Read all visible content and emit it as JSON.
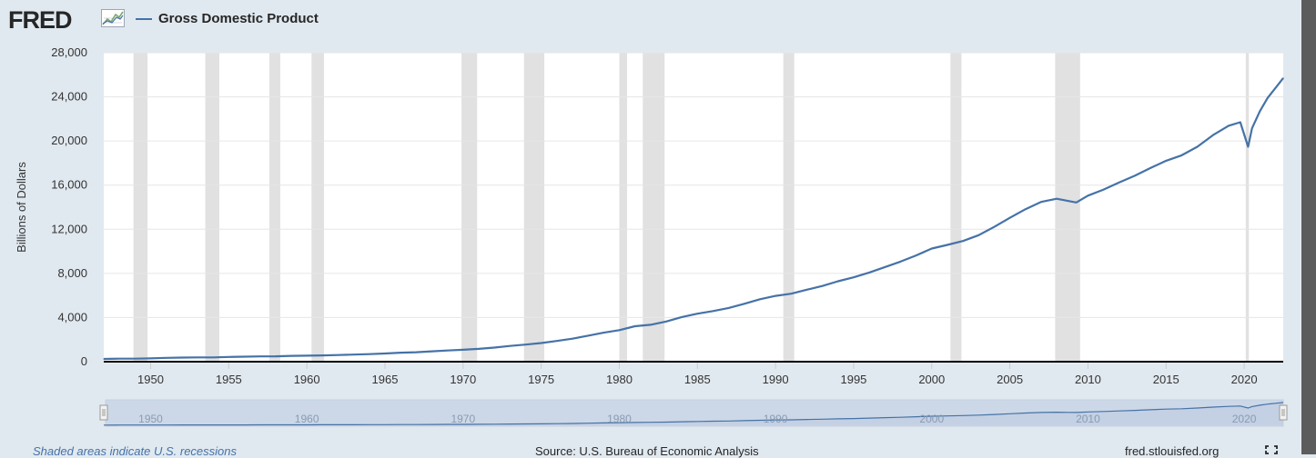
{
  "header": {
    "logo_text": "FRED",
    "logo_icon": "line-chart-icon",
    "series_label": "Gross Domestic Product"
  },
  "footer": {
    "note": "Shaded areas indicate U.S. recessions",
    "source": "Source: U.S. Bureau of Economic Analysis",
    "site": "fred.stlouisfed.org",
    "fullscreen_icon": "fullscreen-icon"
  },
  "colors": {
    "background": "#e1e9f0",
    "plot_background": "#ffffff",
    "line": "#4572a7",
    "recession": "#e1e1e1",
    "navigator": "#c3d0e3"
  },
  "chart_data": {
    "type": "line",
    "title": "Gross Domestic Product",
    "xlabel": "",
    "ylabel": "Billions of Dollars",
    "xlim": [
      1947.0,
      2022.5
    ],
    "ylim": [
      0,
      28000
    ],
    "yticks": [
      "0",
      "4,000",
      "8,000",
      "12,000",
      "16,000",
      "20,000",
      "24,000",
      "28,000"
    ],
    "xticks": [
      "1950",
      "1955",
      "1960",
      "1965",
      "1970",
      "1975",
      "1980",
      "1985",
      "1990",
      "1995",
      "2000",
      "2005",
      "2010",
      "2015",
      "2020"
    ],
    "navigator_ticks": [
      "1950",
      "1960",
      "1970",
      "1980",
      "1990",
      "2000",
      "2010",
      "2020"
    ],
    "grid": true,
    "recessions": [
      [
        1948.9,
        1949.8
      ],
      [
        1953.5,
        1954.4
      ],
      [
        1957.6,
        1958.3
      ],
      [
        1960.3,
        1961.1
      ],
      [
        1969.9,
        1970.9
      ],
      [
        1973.9,
        1975.2
      ],
      [
        1980.0,
        1980.5
      ],
      [
        1981.5,
        1982.9
      ],
      [
        1990.5,
        1991.2
      ],
      [
        2001.2,
        2001.9
      ],
      [
        2007.9,
        2009.5
      ],
      [
        2020.1,
        2020.3
      ]
    ],
    "series": [
      {
        "name": "Gross Domestic Product",
        "x": [
          1947,
          1948,
          1949,
          1950,
          1951,
          1952,
          1953,
          1954,
          1955,
          1956,
          1957,
          1958,
          1959,
          1960,
          1961,
          1962,
          1963,
          1964,
          1965,
          1966,
          1967,
          1968,
          1969,
          1970,
          1971,
          1972,
          1973,
          1974,
          1975,
          1976,
          1977,
          1978,
          1979,
          1980,
          1981,
          1982,
          1983,
          1984,
          1985,
          1986,
          1987,
          1988,
          1989,
          1990,
          1991,
          1992,
          1993,
          1994,
          1995,
          1996,
          1997,
          1998,
          1999,
          2000,
          2001,
          2002,
          2003,
          2004,
          2005,
          2006,
          2007,
          2008,
          2008.75,
          2009.25,
          2010,
          2011,
          2012,
          2013,
          2014,
          2015,
          2016,
          2017,
          2018,
          2019,
          2019.75,
          2020.25,
          2020.5,
          2021,
          2021.5,
          2022,
          2022.5
        ],
        "values": [
          243,
          270,
          275,
          300,
          350,
          370,
          390,
          390,
          425,
          450,
          475,
          485,
          525,
          545,
          565,
          605,
          640,
          685,
          745,
          815,
          860,
          940,
          1015,
          1075,
          1165,
          1280,
          1425,
          1545,
          1685,
          1875,
          2085,
          2355,
          2630,
          2860,
          3210,
          3345,
          3640,
          4040,
          4345,
          4590,
          4870,
          5250,
          5660,
          5965,
          6160,
          6520,
          6860,
          7290,
          7640,
          8075,
          8575,
          9065,
          9630,
          10250,
          10580,
          10940,
          11460,
          12215,
          13040,
          13815,
          14475,
          14770,
          14560,
          14430,
          15050,
          15600,
          16250,
          16850,
          17550,
          18210,
          18700,
          19480,
          20530,
          21380,
          21700,
          19480,
          21150,
          22700,
          23900,
          24800,
          25700
        ]
      }
    ]
  }
}
